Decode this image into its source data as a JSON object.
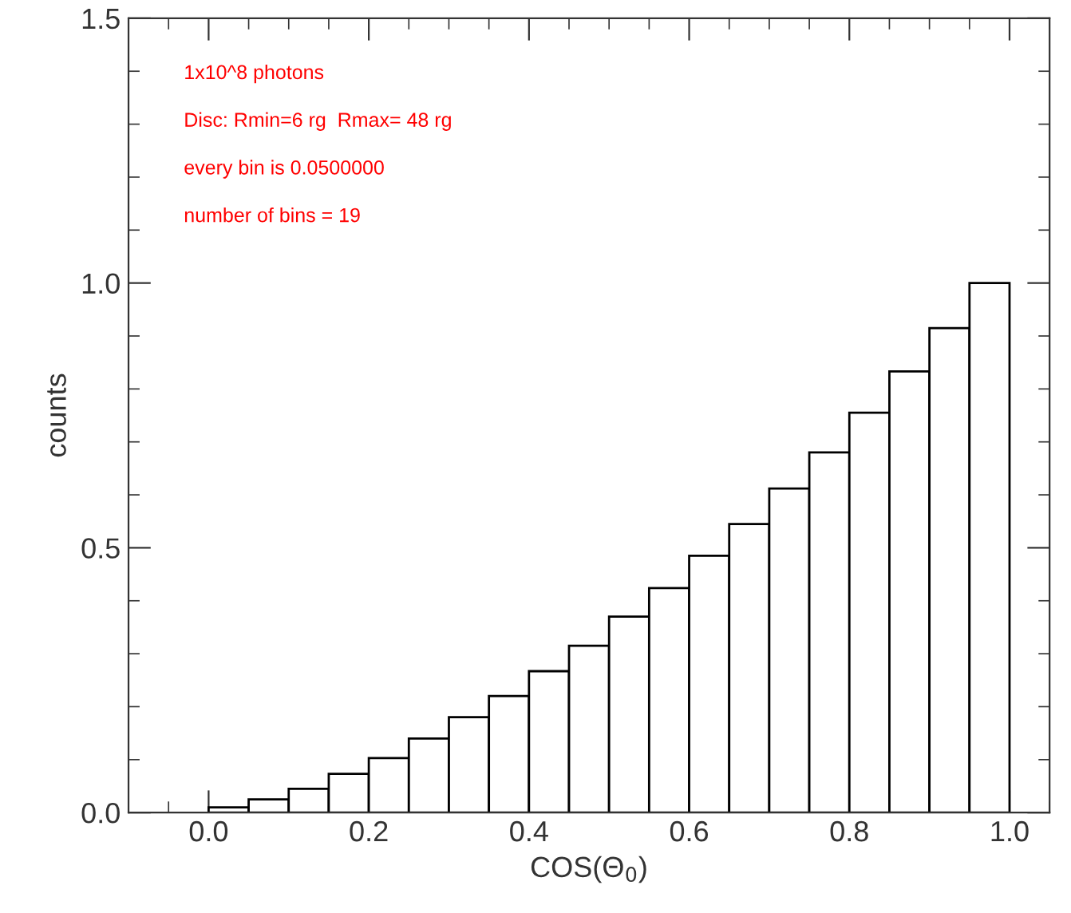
{
  "chart_data": {
    "type": "histogram",
    "xlabel": "COS(Θ$_{0}$)",
    "ylabel": "counts",
    "annotations": [
      "1x10^8 photons",
      "Disc: Rmin=6 rg  Rmax= 48 rg",
      "every bin is 0.0500000",
      "number of bins = 19"
    ],
    "bins": [
      0.0,
      0.05,
      0.1,
      0.15,
      0.2,
      0.25,
      0.3,
      0.35,
      0.4,
      0.45,
      0.5,
      0.55,
      0.6,
      0.65,
      0.7,
      0.75,
      0.8,
      0.85,
      0.9,
      0.95,
      1.0
    ],
    "values": [
      0.01,
      0.025,
      0.045,
      0.073,
      0.103,
      0.14,
      0.18,
      0.22,
      0.267,
      0.315,
      0.37,
      0.424,
      0.485,
      0.545,
      0.612,
      0.68,
      0.755,
      0.833,
      0.915,
      1.0
    ],
    "color": "#ffffff",
    "xlim": [
      -0.1,
      1.05
    ],
    "xticks": [
      {
        "value": 0.0,
        "label": "0.0"
      },
      {
        "value": 0.2,
        "label": "0.2"
      },
      {
        "value": 0.4,
        "label": "0.4"
      },
      {
        "value": 0.6,
        "label": "0.6"
      },
      {
        "value": 0.8,
        "label": "0.8"
      },
      {
        "value": 1.0,
        "label": "1.0"
      }
    ],
    "ylim": [
      0,
      1.5
    ],
    "yticks": [
      {
        "value": 0.0,
        "label": "0.0"
      },
      {
        "value": 0.5,
        "label": "0.5"
      },
      {
        "value": 1.0,
        "label": "1.0"
      },
      {
        "value": 1.5,
        "label": "1.5"
      }
    ],
    "grid": false
  }
}
